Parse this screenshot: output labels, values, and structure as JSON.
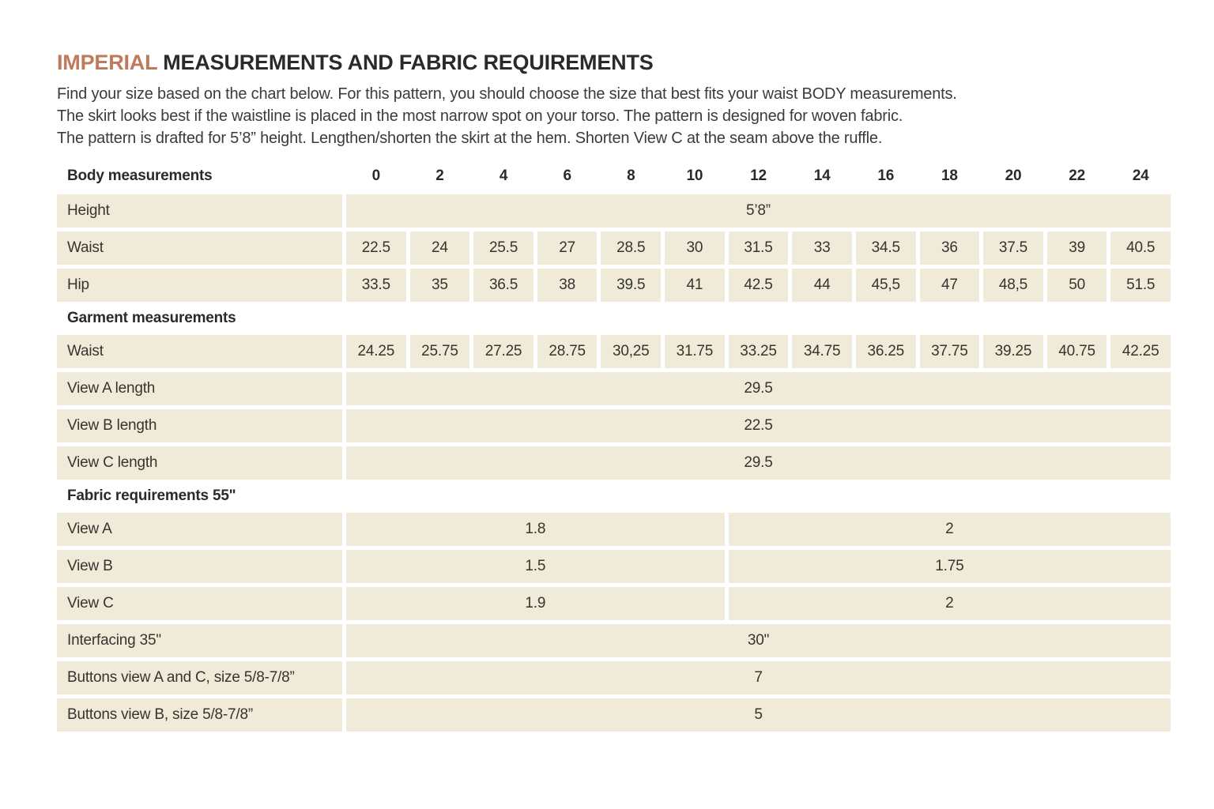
{
  "accent_color": "#c1795b",
  "cell_color": "#f0ebd8",
  "header": {
    "title_accent": "IMPERIAL",
    "title_rest": "MEASUREMENTS AND FABRIC REQUIREMENTS",
    "intro_lines": [
      "Find your size based on the chart below. For this pattern, you should choose the size that best fits your waist BODY measurements.",
      "The skirt looks best if the waistline is placed in the most narrow spot on your torso. The pattern is designed for woven fabric.",
      "The pattern is drafted for 5’8” height. Lengthen/shorten the skirt at the hem. Shorten View C at the seam above the ruffle."
    ]
  },
  "table": {
    "sizes_header_label": "Body measurements",
    "sizes": [
      "0",
      "2",
      "4",
      "6",
      "8",
      "10",
      "12",
      "14",
      "16",
      "18",
      "20",
      "22",
      "24"
    ],
    "rows": [
      {
        "kind": "full",
        "label": "Height",
        "value": "5’8”"
      },
      {
        "kind": "cells",
        "label": "Waist",
        "values": [
          "22.5",
          "24",
          "25.5",
          "27",
          "28.5",
          "30",
          "31.5",
          "33",
          "34.5",
          "36",
          "37.5",
          "39",
          "40.5"
        ]
      },
      {
        "kind": "cells",
        "label": "Hip",
        "values": [
          "33.5",
          "35",
          "36.5",
          "38",
          "39.5",
          "41",
          "42.5",
          "44",
          "45,5",
          "47",
          "48,5",
          "50",
          "51.5"
        ]
      },
      {
        "kind": "section",
        "label": "Garment measurements"
      },
      {
        "kind": "cells",
        "label": "Waist",
        "values": [
          "24.25",
          "25.75",
          "27.25",
          "28.75",
          "30,25",
          "31.75",
          "33.25",
          "34.75",
          "36.25",
          "37.75",
          "39.25",
          "40.75",
          "42.25"
        ]
      },
      {
        "kind": "full",
        "label": "View A length",
        "value": "29.5"
      },
      {
        "kind": "full",
        "label": "View B length",
        "value": "22.5"
      },
      {
        "kind": "full",
        "label": "View C length",
        "value": "29.5"
      },
      {
        "kind": "section",
        "label": "Fabric requirements 55\""
      },
      {
        "kind": "split",
        "label": "View A",
        "left": "1.8",
        "right": "2"
      },
      {
        "kind": "split",
        "label": "View B",
        "left": "1.5",
        "right": "1.75"
      },
      {
        "kind": "split",
        "label": "View C",
        "left": "1.9",
        "right": "2"
      },
      {
        "kind": "full",
        "label": "Interfacing 35\"",
        "value": "30\""
      },
      {
        "kind": "full",
        "label": "Buttons view A and C, size 5/8-7/8”",
        "value": "7"
      },
      {
        "kind": "full",
        "label": "Buttons view B, size 5/8-7/8”",
        "value": "5"
      }
    ]
  }
}
